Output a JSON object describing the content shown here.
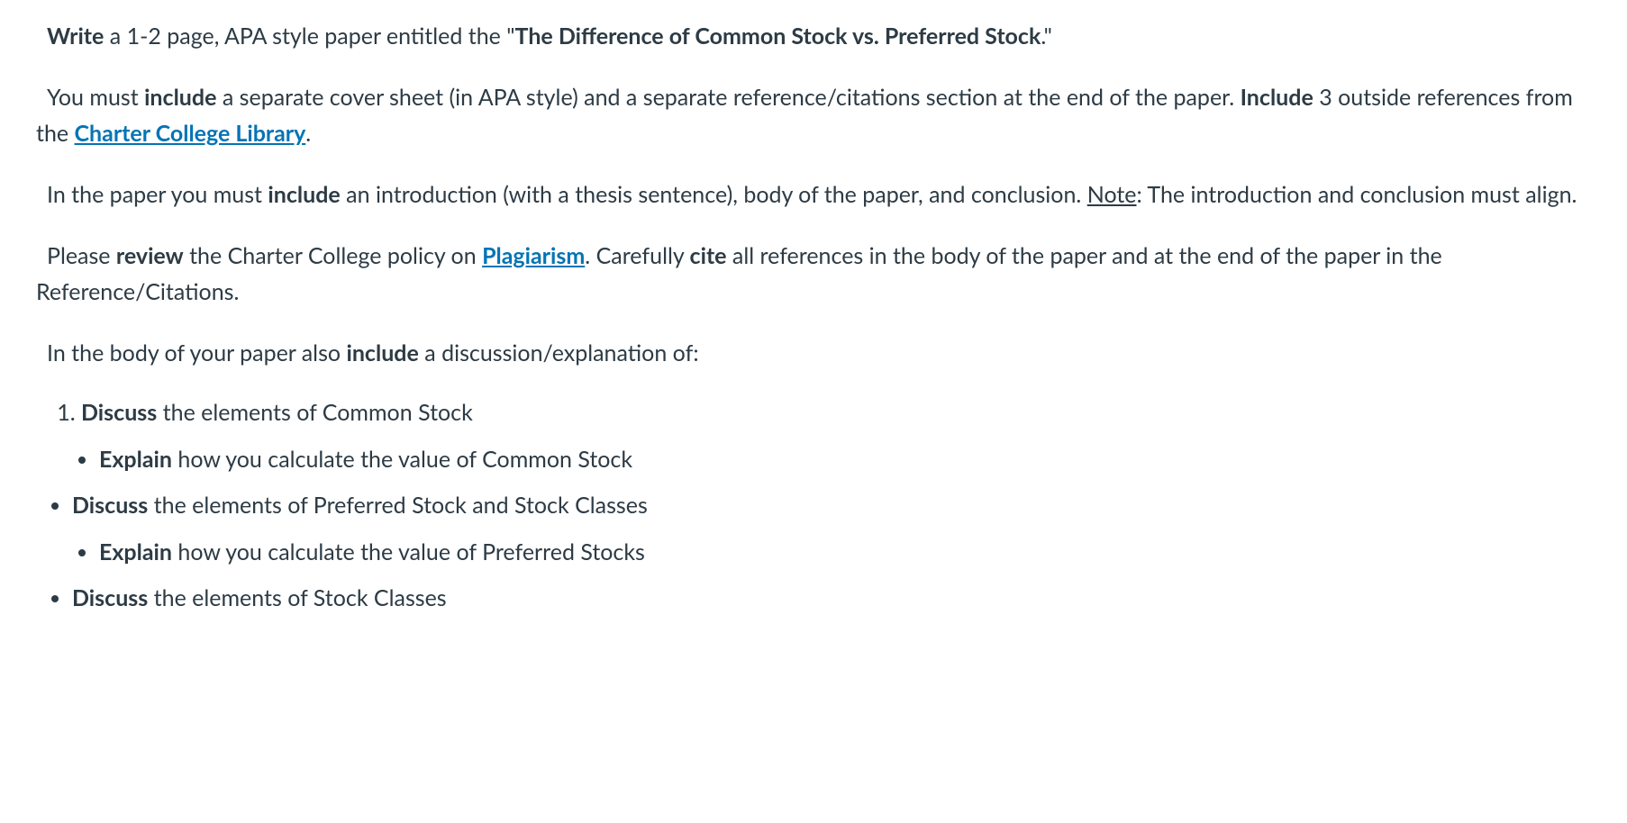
{
  "p1": {
    "s1_bold": "Write",
    "s2": " a 1-2 page, APA style paper entitled the \"",
    "s3_bold": "The Difference of Common Stock vs. Preferred Stock",
    "s4": ".\""
  },
  "p2": {
    "s1": "You must ",
    "s2_bold": "include",
    "s3": " a separate cover sheet (in APA style) and a separate reference/citations section at the end of the paper. ",
    "s4_bold": "Include",
    "s5": " 3 outside references from the ",
    "s6_link": "Charter College Library",
    "s7": "."
  },
  "p3": {
    "s1": "In the paper you must ",
    "s2_bold": "include",
    "s3": " an introduction (with a thesis sentence), body of the paper, and conclusion. ",
    "s4_under": "Note",
    "s5": ": The introduction and conclusion must align."
  },
  "p4": {
    "s1": "Please ",
    "s2_bold": "review",
    "s3": " the Charter College policy on ",
    "s4_link": "Plagiarism",
    "s5": ". Carefully ",
    "s6_bold": "cite",
    "s7": " all references in the body of the paper and at the end of the paper in the Reference/Citations."
  },
  "p5": {
    "s1": "In the body of your paper also ",
    "s2_bold": "include",
    "s3": " a discussion/explanation of:"
  },
  "list": {
    "ol1_bold": "Discuss",
    "ol1_rest": " the elements of Common Stock",
    "ul1_bold": "Explain",
    "ul1_rest": " how you calculate the value of Common Stock",
    "ul2_bold": "Discuss",
    "ul2_rest": " the elements of Preferred Stock and Stock Classes",
    "ul3_bold": "Explain",
    "ul3_rest": " how you calculate the value of Preferred Stocks",
    "ul4_bold": "Discuss",
    "ul4_rest": " the elements of Stock Classes"
  },
  "colors": {
    "text": "#2d3b45",
    "link": "#0374b5",
    "background": "#ffffff"
  },
  "typography": {
    "font_family": "Lato, sans-serif",
    "font_size_pt": 19,
    "line_height": 1.6
  }
}
